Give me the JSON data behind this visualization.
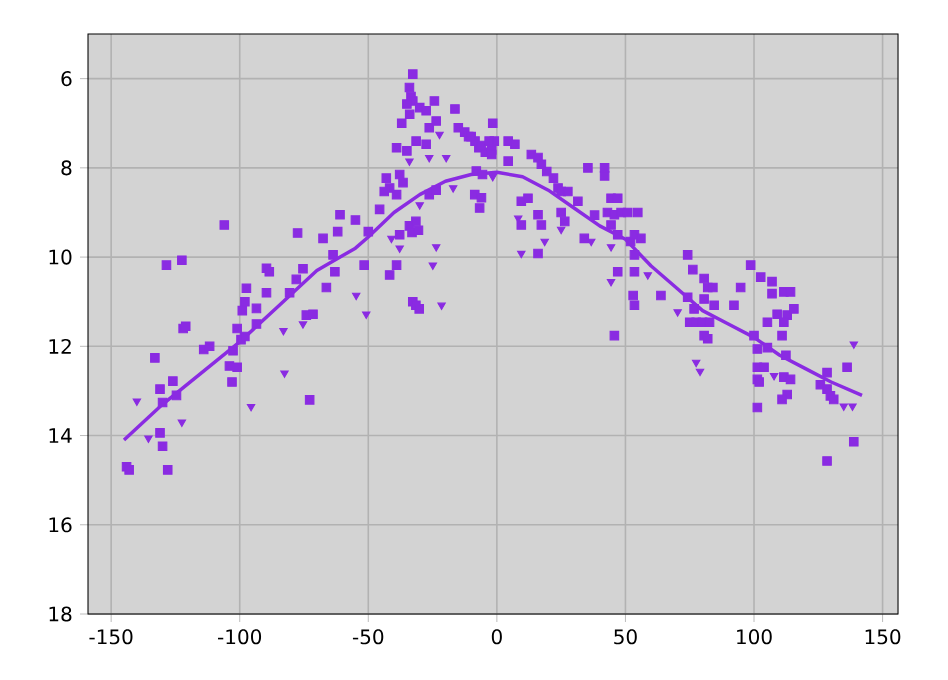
{
  "chart_data": {
    "type": "scatter",
    "xlim": [
      -159,
      156
    ],
    "ylim": [
      18,
      5
    ],
    "xticks": [
      -150,
      -100,
      -50,
      0,
      50,
      100,
      150
    ],
    "yticks": [
      6,
      8,
      10,
      12,
      14,
      16,
      18
    ],
    "grid": true,
    "series": [
      {
        "marker": "square",
        "color": "#8a2be2",
        "x": [
          -106,
          -128.5,
          -122.5,
          -122,
          -121,
          -133,
          -114,
          -111.7,
          -131,
          -126,
          -130,
          -124.6,
          -131,
          -130,
          -144,
          -143,
          -128,
          -104,
          -101,
          -103,
          -102.6,
          -99.5,
          -98,
          -101,
          -99,
          -98,
          -97.4,
          -93.5,
          -89.6,
          -88.5,
          -89.6,
          -93.5,
          -72.8,
          -80.6,
          -78,
          -77.5,
          -75.4,
          -74.1,
          -71.5,
          -67.6,
          -66.3,
          -63.7,
          -61.9,
          -61,
          -63,
          -51.6,
          -55,
          -50,
          -45.6,
          -43,
          -41.7,
          -39,
          -36.5,
          -37.8,
          -43.8,
          -37.8,
          -41.7,
          -39,
          -34,
          -33,
          -31.5,
          -30.5,
          -32.7,
          -31.5,
          -30.2,
          -32.7,
          -34,
          -33.4,
          -32.7,
          -35,
          -33.9,
          -37,
          -30,
          -27.5,
          -24.3,
          -26.3,
          -23.6,
          -31.4,
          -27.5,
          -39,
          -35,
          -16.3,
          -15,
          -12.5,
          -11,
          -8.5,
          -7,
          -4.5,
          -2,
          -1,
          -6,
          -10,
          -1.6,
          -8,
          -5.6,
          -8.6,
          -6.7,
          -6,
          -26.3,
          -23.6,
          -3,
          -2,
          4.4,
          7,
          4.4,
          13.4,
          16,
          17.3,
          19.4,
          22,
          23.8,
          25,
          27.6,
          9.5,
          12.1,
          9.5,
          16,
          17.3,
          16,
          25,
          26.4,
          31.5,
          35.4,
          41.9,
          41.9,
          38,
          34,
          44.4,
          47,
          43,
          45.7,
          48.3,
          44.4,
          47,
          50.9,
          54.8,
          52,
          53.5,
          56,
          53.5,
          53.5,
          47,
          53,
          53.5,
          45.7,
          63.8,
          74.2,
          76.2,
          74.2,
          76.7,
          80.6,
          82,
          84,
          80.6,
          84.5,
          75,
          77.5,
          80,
          82.7,
          80.6,
          82,
          92.2,
          94.8,
          98.7,
          102.6,
          107,
          107,
          111.6,
          114.2,
          109,
          112.9,
          115.5,
          111.6,
          105.2,
          110.9,
          100,
          101.3,
          105.2,
          112.4,
          101.3,
          103.9,
          101.3,
          102,
          111.6,
          114.2,
          101.3,
          112.9,
          110.9,
          128.4,
          136.2,
          125.8,
          128.4,
          129.7,
          131,
          138.8,
          128.4
        ],
        "values": [
          9.28,
          10.18,
          10.07,
          11.6,
          11.55,
          12.26,
          12.07,
          12.0,
          12.96,
          12.78,
          13.26,
          13.1,
          13.94,
          14.24,
          14.7,
          14.77,
          14.77,
          12.44,
          12.47,
          12.8,
          12.1,
          11.85,
          11.78,
          11.6,
          11.2,
          11.0,
          10.7,
          11.15,
          10.25,
          10.33,
          10.8,
          11.5,
          13.2,
          10.8,
          10.5,
          9.46,
          10.26,
          11.3,
          11.28,
          9.58,
          10.68,
          9.95,
          9.43,
          9.05,
          10.33,
          10.18,
          9.17,
          9.43,
          8.93,
          8.23,
          8.45,
          8.6,
          8.33,
          8.15,
          8.53,
          9.5,
          10.4,
          10.18,
          9.3,
          9.45,
          9.2,
          9.4,
          11.0,
          11.08,
          11.16,
          5.9,
          6.2,
          6.4,
          6.5,
          6.57,
          6.8,
          7.0,
          6.65,
          6.72,
          6.5,
          7.1,
          6.95,
          7.4,
          7.47,
          7.55,
          7.62,
          6.68,
          7.1,
          7.2,
          7.3,
          7.4,
          7.55,
          7.65,
          7.6,
          7.4,
          7.5,
          7.3,
          7.0,
          8.07,
          8.15,
          8.6,
          8.9,
          8.67,
          8.6,
          8.5,
          7.4,
          7.7,
          7.4,
          7.47,
          7.85,
          7.7,
          7.77,
          7.92,
          8.08,
          8.23,
          8.45,
          8.53,
          8.53,
          8.75,
          8.68,
          9.28,
          9.05,
          9.28,
          9.92,
          9.0,
          9.2,
          8.75,
          8.0,
          8.0,
          8.18,
          9.06,
          9.58,
          8.68,
          8.68,
          9.0,
          9.05,
          9.0,
          9.28,
          9.5,
          9.0,
          9.0,
          9.65,
          9.5,
          9.58,
          9.95,
          10.33,
          10.33,
          10.86,
          11.08,
          11.76,
          10.86,
          9.95,
          10.28,
          10.9,
          11.16,
          10.48,
          10.68,
          10.68,
          10.94,
          11.08,
          11.46,
          11.46,
          11.46,
          11.46,
          11.76,
          11.83,
          11.08,
          10.68,
          10.18,
          10.45,
          10.55,
          10.82,
          10.78,
          10.78,
          11.28,
          11.3,
          11.16,
          11.46,
          11.46,
          11.76,
          11.76,
          12.06,
          12.03,
          12.2,
          12.47,
          12.47,
          12.74,
          12.8,
          12.69,
          12.74,
          13.37,
          13.08,
          13.19,
          12.59,
          12.47,
          12.86,
          12.96,
          13.11,
          13.19,
          14.14,
          14.57
        ]
      },
      {
        "marker": "triangle",
        "color": "#8a2be2",
        "x": [
          -140,
          -122.5,
          -135.5,
          -95.6,
          -83,
          -82.6,
          -75.4,
          -54.7,
          -50.8,
          -41,
          -37.8,
          -21.5,
          -23.6,
          -24.9,
          -30,
          -22.3,
          -34,
          -26.3,
          -19.7,
          -17,
          -1.6,
          8.3,
          18.6,
          9.5,
          25,
          36.7,
          44.4,
          44.4,
          58.7,
          70.3,
          77.5,
          79,
          107.8,
          138.8,
          134.9,
          138.3
        ],
        "values": [
          13.23,
          13.7,
          14.06,
          13.35,
          11.65,
          12.6,
          11.5,
          10.86,
          11.28,
          9.58,
          9.8,
          11.08,
          9.77,
          10.18,
          8.83,
          7.25,
          7.85,
          7.77,
          7.77,
          8.45,
          8.2,
          9.13,
          9.65,
          9.92,
          9.38,
          9.65,
          9.77,
          10.55,
          10.4,
          11.23,
          12.36,
          12.56,
          12.66,
          11.95,
          13.34,
          13.34
        ]
      },
      {
        "type": "line",
        "marker": "none",
        "color": "#8a2be2",
        "x": [
          -145,
          -130,
          -115,
          -100,
          -85,
          -70,
          -55,
          -50,
          -40,
          -30,
          -20,
          -10,
          0,
          10,
          20,
          30,
          40,
          50,
          60,
          70,
          80,
          90,
          100,
          110,
          120,
          130,
          142
        ],
        "values": [
          14.1,
          13.3,
          12.6,
          11.9,
          11.1,
          10.3,
          9.8,
          9.55,
          9.0,
          8.6,
          8.3,
          8.15,
          8.1,
          8.2,
          8.5,
          8.9,
          9.3,
          9.6,
          10.2,
          10.7,
          11.2,
          11.5,
          11.8,
          12.2,
          12.5,
          12.8,
          13.1
        ]
      }
    ]
  }
}
